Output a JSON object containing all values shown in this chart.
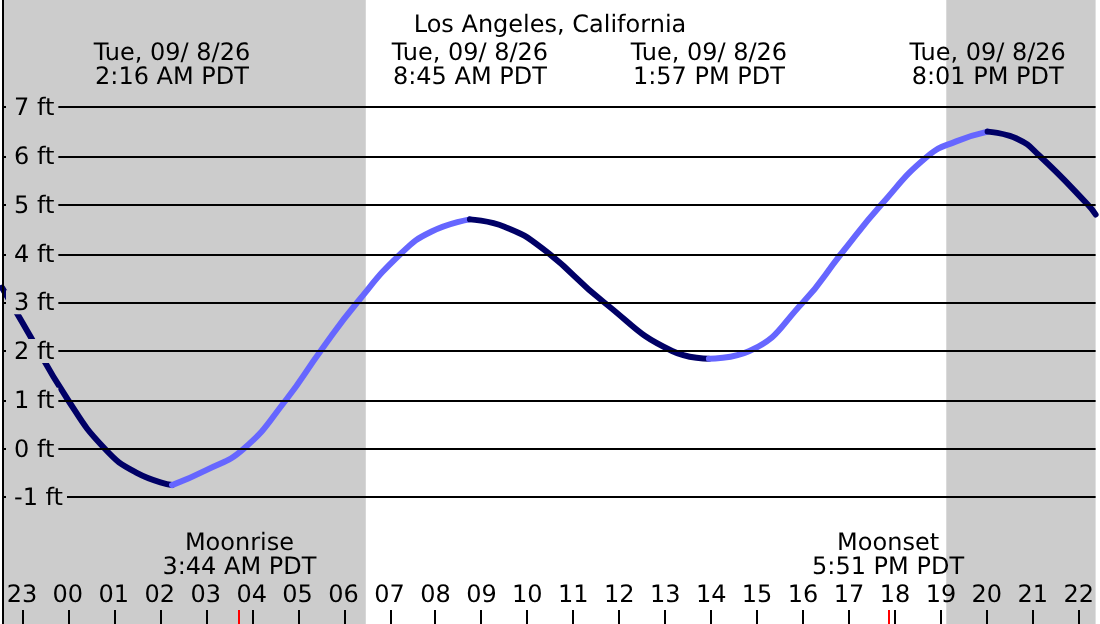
{
  "chart_data": {
    "type": "line",
    "title": "Los Angeles, California",
    "xlim": [
      "--09-07T22:34",
      "--09-08T22:22"
    ],
    "ylim": [
      -3.6,
      9.2
    ],
    "xticks": [
      {
        "value": "--09-07T23:00",
        "label": "23"
      },
      {
        "value": "--09-08T00:00",
        "label": "00"
      },
      {
        "value": "--09-08T01:00",
        "label": "01"
      },
      {
        "value": "--09-08T02:00",
        "label": "02"
      },
      {
        "value": "--09-08T03:00",
        "label": "03"
      },
      {
        "value": "--09-08T04:00",
        "label": "04"
      },
      {
        "value": "--09-08T05:00",
        "label": "05"
      },
      {
        "value": "--09-08T06:00",
        "label": "06"
      },
      {
        "value": "--09-08T07:00",
        "label": "07"
      },
      {
        "value": "--09-08T08:00",
        "label": "08"
      },
      {
        "value": "--09-08T09:00",
        "label": "09"
      },
      {
        "value": "--09-08T10:00",
        "label": "10"
      },
      {
        "value": "--09-08T11:00",
        "label": "11"
      },
      {
        "value": "--09-08T12:00",
        "label": "12"
      },
      {
        "value": "--09-08T13:00",
        "label": "13"
      },
      {
        "value": "--09-08T14:00",
        "label": "14"
      },
      {
        "value": "--09-08T15:00",
        "label": "15"
      },
      {
        "value": "--09-08T16:00",
        "label": "16"
      },
      {
        "value": "--09-08T17:00",
        "label": "17"
      },
      {
        "value": "--09-08T18:00",
        "label": "18"
      },
      {
        "value": "--09-08T19:00",
        "label": "19"
      },
      {
        "value": "--09-08T20:00",
        "label": "20"
      },
      {
        "value": "--09-08T21:00",
        "label": "21"
      },
      {
        "value": "--09-08T22:00",
        "label": "22"
      }
    ],
    "yticks": [
      {
        "value": -1,
        "label": "-1 ft"
      },
      {
        "value": 0,
        "label": "0 ft"
      },
      {
        "value": 1,
        "label": "1 ft"
      },
      {
        "value": 2,
        "label": "2 ft"
      },
      {
        "value": 3,
        "label": "3 ft"
      },
      {
        "value": 4,
        "label": "4 ft"
      },
      {
        "value": 5,
        "label": "5 ft"
      },
      {
        "value": 6,
        "label": "6 ft"
      },
      {
        "value": 7,
        "label": "7 ft"
      }
    ],
    "grid": "y",
    "marker": "none",
    "line_style": "solid",
    "series": [
      {
        "color": "#000066",
        "x": [
          "--09-07T22:34",
          "--09-07T23:00",
          "--09-08T00:00",
          "--09-08T00:48",
          "--09-08T01:30",
          "--09-08T02:16"
        ],
        "values": [
          3.3,
          2.6,
          1,
          0,
          -0.5,
          -0.75
        ]
      },
      {
        "color": "#6666ff",
        "x": [
          "--09-08T02:16",
          "--09-08T03:00",
          "--09-08T03:50",
          "--09-08T04:45",
          "--09-08T05:30",
          "--09-08T06:18",
          "--09-08T07:15",
          "--09-08T07:55",
          "--09-08T08:45"
        ],
        "values": [
          -0.75,
          -0.45,
          0,
          1,
          2,
          3,
          4,
          4.45,
          4.7
        ]
      },
      {
        "color": "#000066",
        "x": [
          "--09-08T08:45",
          "--09-08T09:30",
          "--09-08T10:20",
          "--09-08T11:40",
          "--09-08T13:09",
          "--09-08T13:57"
        ],
        "values": [
          4.7,
          4.55,
          4.1,
          3,
          2,
          1.84
        ]
      },
      {
        "color": "#6666ff",
        "x": [
          "--09-08T13:57",
          "--09-08T14:50",
          "--09-08T16:00",
          "--09-08T16:50",
          "--09-08T17:42",
          "--09-08T18:43",
          "--09-08T19:20",
          "--09-08T20:01"
        ],
        "values": [
          1.84,
          2,
          3,
          4,
          5,
          6,
          6.3,
          6.5
        ]
      },
      {
        "color": "#000066",
        "x": [
          "--09-08T20:01",
          "--09-08T20:40",
          "--09-08T21:09",
          "--09-08T22:12",
          "--09-08T22:22"
        ],
        "values": [
          6.5,
          6.35,
          6,
          5,
          4.8
        ]
      }
    ],
    "bands": [
      {
        "axis": "x",
        "from": "--09-07T22:34",
        "to": "--09-08T06:29",
        "color": "#cccccc"
      },
      {
        "axis": "x",
        "from": "--09-08T19:07",
        "to": "--09-08T22:22",
        "color": "#cccccc"
      }
    ],
    "ref_lines": [
      {
        "axis": "x",
        "value": "--09-08T03:44",
        "label": "Moonrise\n3:44 AM PDT",
        "color": "#ff0000"
      },
      {
        "axis": "x",
        "value": "--09-08T17:51",
        "label": "Moonset\n5:51 PM PDT",
        "color": "#ff0000"
      }
    ],
    "x2lim": [
      "--09-07T22:34",
      "--09-08T22:22"
    ],
    "x2ticks": [
      {
        "value": "--09-08T02:16",
        "label": "Tue, 09/ 8/26\n2:16 AM PDT"
      },
      {
        "value": "--09-08T08:45",
        "label": "Tue, 09/ 8/26\n8:45 AM PDT"
      },
      {
        "value": "--09-08T13:57",
        "label": "Tue, 09/ 8/26\n1:57 PM PDT"
      },
      {
        "value": "--09-08T20:01",
        "label": "Tue, 09/ 8/26\n8:01 PM PDT"
      }
    ]
  }
}
